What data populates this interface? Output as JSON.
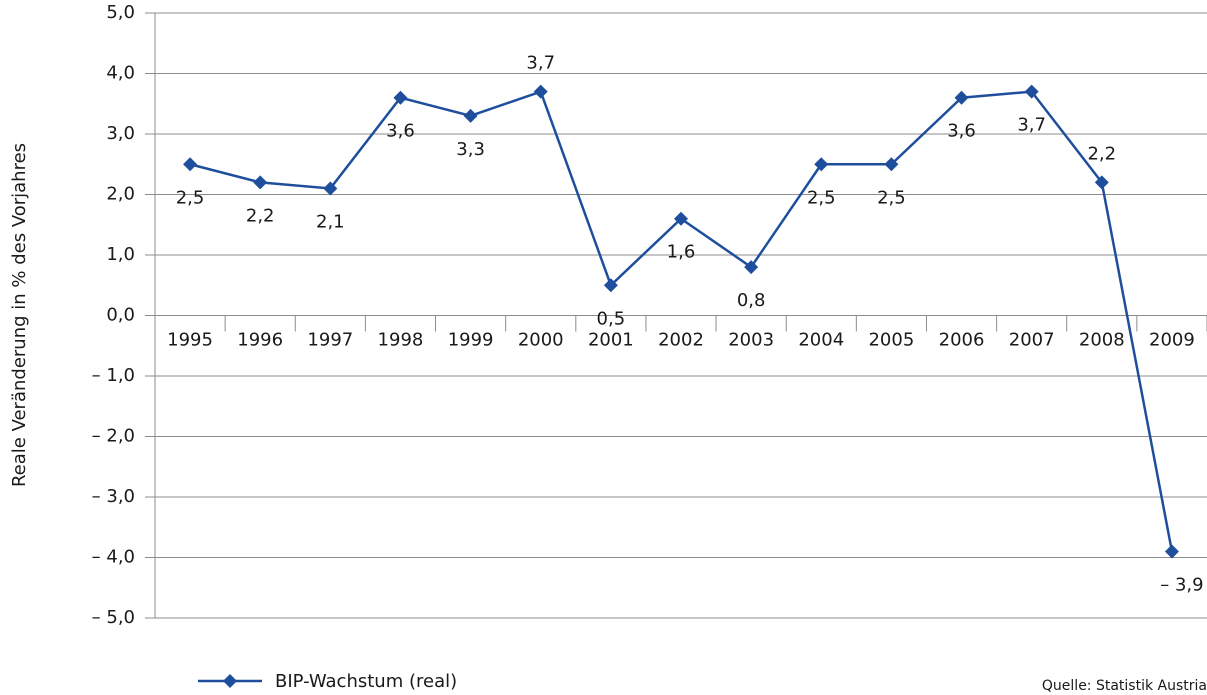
{
  "chart_data": {
    "type": "line",
    "y_label": "Reale Veränderung in % des Vorjahres",
    "categories": [
      "1995",
      "1996",
      "1997",
      "1998",
      "1999",
      "2000",
      "2001",
      "2002",
      "2003",
      "2004",
      "2005",
      "2006",
      "2007",
      "2008",
      "2009"
    ],
    "series": [
      {
        "name": "BIP-Wachstum (real)",
        "color": "#1f4f9c",
        "values": [
          2.5,
          2.2,
          2.1,
          3.6,
          3.3,
          3.7,
          0.5,
          1.6,
          0.8,
          2.5,
          2.5,
          3.6,
          3.7,
          2.2,
          -3.9
        ],
        "value_labels": [
          "2,5",
          "2,2",
          "2,1",
          "3,6",
          "3,3",
          "3,7",
          "0,5",
          "1,6",
          "0,8",
          "2,5",
          "2,5",
          "3,6",
          "3,7",
          "2,2",
          "– 3,9"
        ]
      }
    ],
    "ylim": [
      -5,
      5
    ],
    "yticks": [
      {
        "value": 5,
        "label": "5,0"
      },
      {
        "value": 4,
        "label": "4,0"
      },
      {
        "value": 3,
        "label": "3,0"
      },
      {
        "value": 2,
        "label": "2,0"
      },
      {
        "value": 1,
        "label": "1,0"
      },
      {
        "value": 0,
        "label": "0,0"
      },
      {
        "value": -1,
        "label": "– 1,0"
      },
      {
        "value": -2,
        "label": "– 2,0"
      },
      {
        "value": -3,
        "label": "– 3,0"
      },
      {
        "value": -4,
        "label": "– 4,0"
      },
      {
        "value": -5,
        "label": "– 5,0"
      }
    ],
    "grid": true,
    "legend": "bottom-left",
    "source": "Quelle: Statistik Austria"
  }
}
